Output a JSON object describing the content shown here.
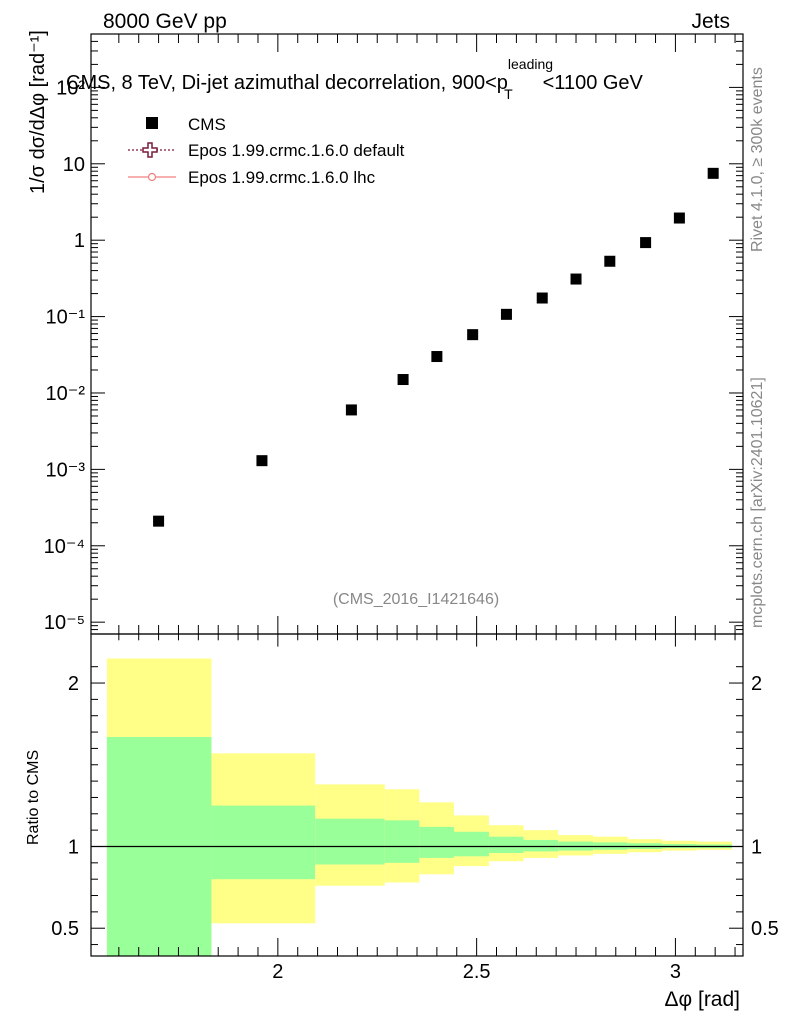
{
  "header": {
    "left": "8000 GeV pp",
    "right": "Jets",
    "title_main": "CMS, 8 TeV, Di-jet azimuthal decorrelation, 900<p",
    "title_sup": "leading",
    "title_sub": "T",
    "title_end": "<1100 GeV",
    "watermark": "(CMS_2016_I1421646)",
    "side_rivet": "Rivet 4.1.0, ≥ 300k events",
    "side_mcplots": "mcplots.cern.ch [arXiv:2401.10621]"
  },
  "legend": {
    "items": [
      {
        "label": "CMS",
        "color": "#000000",
        "style": "square"
      },
      {
        "label": "Epos 1.99.crmc.1.6.0 default",
        "color": "#7a1a3a",
        "style": "dotted-cross"
      },
      {
        "label": "Epos 1.99.crmc.1.6.0 lhc",
        "color": "#f08080",
        "style": "solid-circle"
      }
    ]
  },
  "chart_data": {
    "type": "scatter",
    "title": "CMS, 8 TeV, Di-jet azimuthal decorrelation, 900<p_T^leading<1100 GeV",
    "xlabel": "Δφ [rad]",
    "ylabel": "1/σ dσ/dΔφ [rad⁻¹]",
    "yscale": "log",
    "xlim": [
      1.53,
      3.17
    ],
    "ylim": [
      7e-06,
      500
    ],
    "x_ticks": [
      "2",
      "2.5",
      "3"
    ],
    "y_ticks": [
      "10⁻⁵",
      "10⁻⁴",
      "10⁻³",
      "10⁻²",
      "10⁻¹",
      "1",
      "10",
      "10²"
    ],
    "series": [
      {
        "name": "CMS",
        "x": [
          1.7,
          1.96,
          2.185,
          2.315,
          2.4,
          2.49,
          2.575,
          2.665,
          2.75,
          2.835,
          2.925,
          3.01,
          3.095
        ],
        "y": [
          0.00021,
          0.0013,
          0.006,
          0.015,
          0.03,
          0.058,
          0.107,
          0.175,
          0.31,
          0.53,
          0.93,
          1.95,
          7.5
        ]
      }
    ],
    "ratio_panel": {
      "ylabel": "Ratio to CMS",
      "ylim": [
        0.33,
        2.3
      ],
      "y_ticks": [
        "0.5",
        "1",
        "2"
      ],
      "bins": [
        {
          "lo": 1.57,
          "hi": 1.833,
          "inner": [
            0.33,
            1.67
          ],
          "outer": [
            0.33,
            2.15
          ]
        },
        {
          "lo": 1.833,
          "hi": 2.094,
          "inner": [
            0.8,
            1.25
          ],
          "outer": [
            0.53,
            1.57
          ]
        },
        {
          "lo": 2.094,
          "hi": 2.269,
          "inner": [
            0.89,
            1.17
          ],
          "outer": [
            0.76,
            1.38
          ]
        },
        {
          "lo": 2.269,
          "hi": 2.356,
          "inner": [
            0.9,
            1.16
          ],
          "outer": [
            0.78,
            1.35
          ]
        },
        {
          "lo": 2.356,
          "hi": 2.443,
          "inner": [
            0.93,
            1.12
          ],
          "outer": [
            0.83,
            1.27
          ]
        },
        {
          "lo": 2.443,
          "hi": 2.531,
          "inner": [
            0.94,
            1.09
          ],
          "outer": [
            0.88,
            1.19
          ]
        },
        {
          "lo": 2.531,
          "hi": 2.618,
          "inner": [
            0.96,
            1.06
          ],
          "outer": [
            0.91,
            1.13
          ]
        },
        {
          "lo": 2.618,
          "hi": 2.705,
          "inner": [
            0.97,
            1.04
          ],
          "outer": [
            0.93,
            1.1
          ]
        },
        {
          "lo": 2.705,
          "hi": 2.793,
          "inner": [
            0.975,
            1.03
          ],
          "outer": [
            0.945,
            1.07
          ]
        },
        {
          "lo": 2.793,
          "hi": 2.88,
          "inner": [
            0.98,
            1.025
          ],
          "outer": [
            0.955,
            1.06
          ]
        },
        {
          "lo": 2.88,
          "hi": 2.967,
          "inner": [
            0.985,
            1.02
          ],
          "outer": [
            0.965,
            1.045
          ]
        },
        {
          "lo": 2.967,
          "hi": 3.054,
          "inner": [
            0.99,
            1.015
          ],
          "outer": [
            0.975,
            1.035
          ]
        },
        {
          "lo": 3.054,
          "hi": 3.142,
          "inner": [
            0.99,
            1.012
          ],
          "outer": [
            0.98,
            1.03
          ]
        }
      ]
    }
  }
}
